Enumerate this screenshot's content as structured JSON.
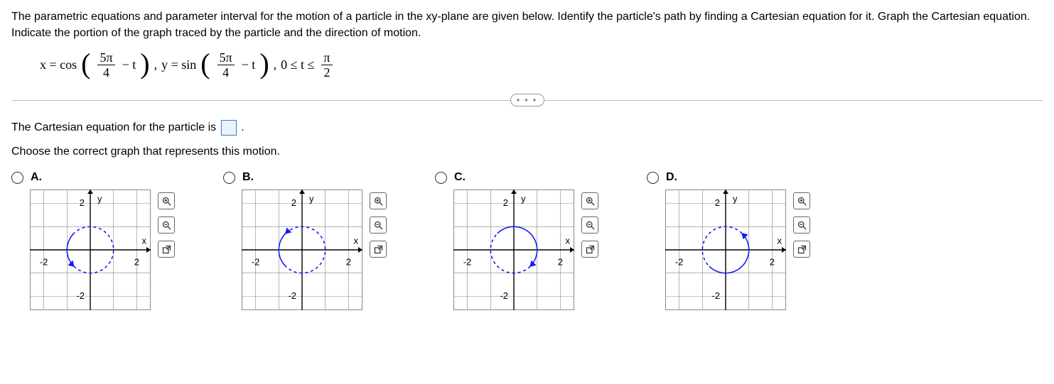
{
  "problem": {
    "text": "The parametric equations and parameter interval for the motion of a particle in the xy-plane are given below. Identify the particle's path by finding a Cartesian equation for it. Graph the Cartesian equation. Indicate the portion of the graph traced by the particle and the direction of motion."
  },
  "equations": {
    "x_prefix": "x = cos",
    "frac1_num": "5π",
    "frac1_den": "4",
    "minus_t": " − t",
    "comma1": ", ",
    "y_prefix": "y = sin",
    "frac2_num": "5π",
    "frac2_den": "4",
    "comma2": ", ",
    "interval_lhs": "0 ≤ t ≤",
    "interval_frac_num": "π",
    "interval_frac_den": "2"
  },
  "divider_dots": "• • •",
  "answer_sentence_before": "The Cartesian equation for the particle is ",
  "answer_sentence_after": ".",
  "choose_text": "Choose the correct graph that represents this motion.",
  "grid": {
    "size": 170,
    "range": [
      -2.6,
      2.6
    ],
    "tick_major": 2,
    "grid_step": 1,
    "grid_color": "#888888",
    "axis_color": "#000000",
    "axis_label_font": 13,
    "tick_label_font": 13,
    "x_label": "x",
    "y_label": "y",
    "labels": {
      "neg2": "-2",
      "pos2": "2"
    }
  },
  "circle": {
    "color": "#1a1af5",
    "radius": 1,
    "stroke_width": 1.6,
    "dash": "4 4"
  },
  "arrow": {
    "size": 7
  },
  "options": [
    {
      "key": "A",
      "label": "A.",
      "arc": {
        "start_deg": 135,
        "end_deg": 225,
        "sweep_ccw": true,
        "arrow_at": "end"
      }
    },
    {
      "key": "B",
      "label": "B.",
      "arc": {
        "start_deg": 225,
        "end_deg": 135,
        "sweep_ccw": false,
        "arrow_at": "start_pointing_ccw"
      }
    },
    {
      "key": "C",
      "label": "C.",
      "arc": {
        "start_deg": 135,
        "end_deg": -45,
        "sweep_ccw": false,
        "arrow_at": "end"
      }
    },
    {
      "key": "D",
      "label": "D.",
      "arc": {
        "start_deg": 225,
        "end_deg": 45,
        "sweep_ccw": true,
        "arrow_at": "end"
      }
    }
  ]
}
